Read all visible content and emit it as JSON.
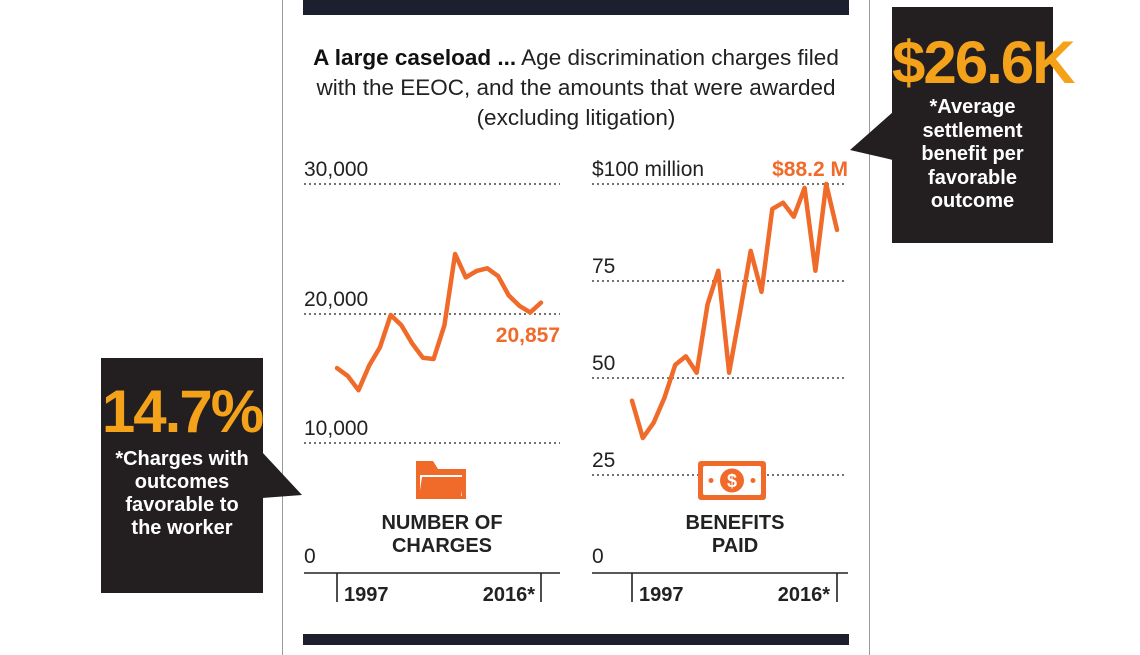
{
  "headline": {
    "bold": "A large caseload ...",
    "rest": "Age discrimination charges filed with the EEOC, and the amounts that were awarded (excluding litigation)"
  },
  "colors": {
    "line": "#f06a2a",
    "accent_label": "#f06a2a",
    "callout_bg": "#231f20",
    "callout_big": "#f5a21b",
    "rule": "#1c1f2e"
  },
  "callout_left": {
    "big": "14.7%",
    "text": "*Charges with outcomes favorable to the worker"
  },
  "callout_right": {
    "big": "$26.6K",
    "text": "*Average settlement benefit per favorable outcome"
  },
  "chart_data": [
    {
      "type": "line",
      "title": "NUMBER OF CHARGES",
      "icon": "folder-icon",
      "x": [
        1997,
        1998,
        1999,
        2000,
        2001,
        2002,
        2003,
        2004,
        2005,
        2006,
        2007,
        2008,
        2009,
        2010,
        2011,
        2012,
        2013,
        2014,
        2015,
        2016
      ],
      "x_tick_labels": [
        "1997",
        "2016*"
      ],
      "y_tick_labels": [
        "30,000",
        "20,000",
        "10,000",
        "0"
      ],
      "y_ticks": [
        30000,
        20000,
        10000,
        0
      ],
      "ylim": [
        0,
        30000
      ],
      "values": [
        15800,
        15200,
        14100,
        16000,
        17400,
        19900,
        19100,
        17700,
        16600,
        16500,
        19100,
        24600,
        22800,
        23300,
        23500,
        22900,
        21400,
        20600,
        20100,
        20857
      ],
      "end_label": "20,857",
      "grid": "dotted horizontal"
    },
    {
      "type": "line",
      "title": "BENEFITS PAID",
      "icon": "cash-icon",
      "x": [
        1997,
        1998,
        1999,
        2000,
        2001,
        2002,
        2003,
        2004,
        2005,
        2006,
        2007,
        2008,
        2009,
        2010,
        2011,
        2012,
        2013,
        2014,
        2015,
        2016
      ],
      "x_tick_labels": [
        "1997",
        "2016*"
      ],
      "y_tick_labels": [
        "$100 million",
        "75",
        "50",
        "25",
        "0"
      ],
      "y_ticks": [
        100,
        75,
        50,
        25,
        0
      ],
      "ylim": [
        0,
        100
      ],
      "values": [
        44.3,
        34.7,
        38.6,
        45.0,
        53.5,
        55.7,
        51.5,
        69.0,
        77.7,
        51.5,
        66.8,
        82.8,
        72.3,
        93.6,
        95.2,
        91.6,
        99.0,
        77.7,
        100.0,
        88.2
      ],
      "end_label": "$88.2 M",
      "grid": "dotted horizontal"
    }
  ]
}
